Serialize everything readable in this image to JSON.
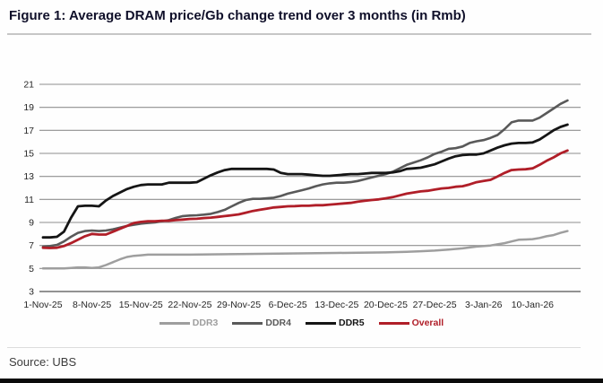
{
  "page": {
    "title": "Figure 1: Average DRAM price/Gb change trend over 3 months (in Rmb)",
    "source": "Source: UBS"
  },
  "chart_data": {
    "type": "line",
    "title": "Average DRAM price/Gb change trend over 3 months (in Rmb)",
    "xlabel": "",
    "ylabel": "",
    "ylim": [
      3,
      21
    ],
    "yticks": [
      3,
      5,
      7,
      9,
      11,
      13,
      15,
      17,
      19,
      21
    ],
    "x_unit": "days since 1-Nov-25",
    "xlim": [
      0,
      77
    ],
    "xticks": [
      0,
      7,
      14,
      21,
      28,
      35,
      42,
      49,
      56,
      63,
      70
    ],
    "xtick_labels": [
      "1-Nov-25",
      "8-Nov-25",
      "15-Nov-25",
      "22-Nov-25",
      "29-Nov-25",
      "6-Dec-25",
      "13-Dec-25",
      "20-Dec-25",
      "27-Dec-25",
      "3-Jan-26",
      "10-Jan-26"
    ],
    "grid": true,
    "gridline_color": "#8f8f8f",
    "axis_text_color": "#262626",
    "legend_position": "bottom",
    "series": [
      {
        "name": "DDR3",
        "color": "#9e9e9e",
        "width": 2.5,
        "points": [
          [
            0,
            5.0
          ],
          [
            3,
            5.0
          ],
          [
            4,
            5.05
          ],
          [
            5,
            5.1
          ],
          [
            6,
            5.1
          ],
          [
            7,
            5.05
          ],
          [
            8,
            5.1
          ],
          [
            9,
            5.3
          ],
          [
            10,
            5.55
          ],
          [
            11,
            5.8
          ],
          [
            12,
            6.0
          ],
          [
            13,
            6.1
          ],
          [
            14,
            6.15
          ],
          [
            15,
            6.2
          ],
          [
            21,
            6.2
          ],
          [
            28,
            6.25
          ],
          [
            35,
            6.3
          ],
          [
            42,
            6.35
          ],
          [
            49,
            6.4
          ],
          [
            52,
            6.45
          ],
          [
            54,
            6.5
          ],
          [
            56,
            6.55
          ],
          [
            58,
            6.65
          ],
          [
            60,
            6.75
          ],
          [
            62,
            6.9
          ],
          [
            64,
            7.0
          ],
          [
            65,
            7.1
          ],
          [
            66,
            7.2
          ],
          [
            67,
            7.35
          ],
          [
            68,
            7.5
          ],
          [
            69,
            7.52
          ],
          [
            70,
            7.55
          ],
          [
            71,
            7.65
          ],
          [
            72,
            7.8
          ],
          [
            73,
            7.9
          ],
          [
            74,
            8.1
          ],
          [
            75,
            8.25
          ]
        ]
      },
      {
        "name": "DDR4",
        "color": "#595959",
        "width": 2.6,
        "points": [
          [
            0,
            6.9
          ],
          [
            1,
            6.95
          ],
          [
            2,
            7.05
          ],
          [
            3,
            7.35
          ],
          [
            4,
            7.75
          ],
          [
            5,
            8.1
          ],
          [
            6,
            8.25
          ],
          [
            7,
            8.3
          ],
          [
            8,
            8.25
          ],
          [
            9,
            8.3
          ],
          [
            10,
            8.4
          ],
          [
            11,
            8.55
          ],
          [
            12,
            8.7
          ],
          [
            13,
            8.8
          ],
          [
            14,
            8.9
          ],
          [
            15,
            8.95
          ],
          [
            16,
            9.0
          ],
          [
            17,
            9.1
          ],
          [
            18,
            9.2
          ],
          [
            19,
            9.4
          ],
          [
            20,
            9.55
          ],
          [
            21,
            9.6
          ],
          [
            22,
            9.62
          ],
          [
            23,
            9.68
          ],
          [
            24,
            9.75
          ],
          [
            25,
            9.9
          ],
          [
            26,
            10.1
          ],
          [
            27,
            10.4
          ],
          [
            28,
            10.7
          ],
          [
            29,
            10.95
          ],
          [
            30,
            11.05
          ],
          [
            31,
            11.05
          ],
          [
            32,
            11.1
          ],
          [
            33,
            11.15
          ],
          [
            34,
            11.3
          ],
          [
            35,
            11.5
          ],
          [
            36,
            11.65
          ],
          [
            37,
            11.8
          ],
          [
            38,
            11.95
          ],
          [
            39,
            12.15
          ],
          [
            40,
            12.3
          ],
          [
            41,
            12.4
          ],
          [
            42,
            12.45
          ],
          [
            43,
            12.45
          ],
          [
            44,
            12.5
          ],
          [
            45,
            12.6
          ],
          [
            46,
            12.75
          ],
          [
            47,
            12.9
          ],
          [
            48,
            13.05
          ],
          [
            49,
            13.2
          ],
          [
            50,
            13.4
          ],
          [
            51,
            13.7
          ],
          [
            52,
            14.0
          ],
          [
            53,
            14.2
          ],
          [
            54,
            14.4
          ],
          [
            55,
            14.65
          ],
          [
            56,
            14.95
          ],
          [
            57,
            15.15
          ],
          [
            58,
            15.4
          ],
          [
            59,
            15.45
          ],
          [
            60,
            15.6
          ],
          [
            61,
            15.9
          ],
          [
            62,
            16.05
          ],
          [
            63,
            16.15
          ],
          [
            64,
            16.35
          ],
          [
            65,
            16.6
          ],
          [
            66,
            17.1
          ],
          [
            67,
            17.7
          ],
          [
            68,
            17.85
          ],
          [
            69,
            17.85
          ],
          [
            70,
            17.85
          ],
          [
            71,
            18.1
          ],
          [
            72,
            18.5
          ],
          [
            73,
            18.9
          ],
          [
            74,
            19.3
          ],
          [
            75,
            19.6
          ]
        ]
      },
      {
        "name": "DDR5",
        "color": "#151515",
        "width": 2.8,
        "points": [
          [
            0,
            7.7
          ],
          [
            1,
            7.7
          ],
          [
            2,
            7.75
          ],
          [
            3,
            8.2
          ],
          [
            4,
            9.4
          ],
          [
            5,
            10.4
          ],
          [
            6,
            10.45
          ],
          [
            7,
            10.45
          ],
          [
            8,
            10.4
          ],
          [
            9,
            10.9
          ],
          [
            10,
            11.3
          ],
          [
            11,
            11.6
          ],
          [
            12,
            11.9
          ],
          [
            13,
            12.1
          ],
          [
            14,
            12.25
          ],
          [
            15,
            12.3
          ],
          [
            17,
            12.3
          ],
          [
            18,
            12.45
          ],
          [
            20,
            12.45
          ],
          [
            21,
            12.45
          ],
          [
            22,
            12.5
          ],
          [
            23,
            12.8
          ],
          [
            24,
            13.1
          ],
          [
            25,
            13.35
          ],
          [
            26,
            13.55
          ],
          [
            27,
            13.65
          ],
          [
            29,
            13.65
          ],
          [
            31,
            13.65
          ],
          [
            32,
            13.65
          ],
          [
            33,
            13.6
          ],
          [
            34,
            13.3
          ],
          [
            35,
            13.2
          ],
          [
            36,
            13.2
          ],
          [
            37,
            13.2
          ],
          [
            38,
            13.15
          ],
          [
            39,
            13.1
          ],
          [
            40,
            13.05
          ],
          [
            41,
            13.05
          ],
          [
            42,
            13.1
          ],
          [
            43,
            13.15
          ],
          [
            44,
            13.2
          ],
          [
            45,
            13.2
          ],
          [
            46,
            13.25
          ],
          [
            47,
            13.3
          ],
          [
            49,
            13.3
          ],
          [
            50,
            13.35
          ],
          [
            51,
            13.45
          ],
          [
            52,
            13.65
          ],
          [
            53,
            13.7
          ],
          [
            54,
            13.75
          ],
          [
            55,
            13.9
          ],
          [
            56,
            14.05
          ],
          [
            57,
            14.3
          ],
          [
            58,
            14.55
          ],
          [
            59,
            14.75
          ],
          [
            60,
            14.85
          ],
          [
            61,
            14.9
          ],
          [
            62,
            14.9
          ],
          [
            63,
            15.0
          ],
          [
            64,
            15.25
          ],
          [
            65,
            15.5
          ],
          [
            66,
            15.7
          ],
          [
            67,
            15.85
          ],
          [
            68,
            15.9
          ],
          [
            69,
            15.9
          ],
          [
            70,
            15.95
          ],
          [
            71,
            16.2
          ],
          [
            72,
            16.6
          ],
          [
            73,
            17.0
          ],
          [
            74,
            17.3
          ],
          [
            75,
            17.5
          ]
        ]
      },
      {
        "name": "Overall",
        "color": "#b01e28",
        "width": 2.8,
        "points": [
          [
            0,
            6.8
          ],
          [
            1,
            6.78
          ],
          [
            2,
            6.8
          ],
          [
            3,
            6.95
          ],
          [
            4,
            7.2
          ],
          [
            5,
            7.5
          ],
          [
            6,
            7.8
          ],
          [
            7,
            8.0
          ],
          [
            8,
            7.95
          ],
          [
            9,
            7.95
          ],
          [
            10,
            8.2
          ],
          [
            11,
            8.45
          ],
          [
            12,
            8.7
          ],
          [
            13,
            8.95
          ],
          [
            14,
            9.05
          ],
          [
            15,
            9.1
          ],
          [
            16,
            9.1
          ],
          [
            17,
            9.15
          ],
          [
            18,
            9.15
          ],
          [
            19,
            9.2
          ],
          [
            20,
            9.25
          ],
          [
            21,
            9.3
          ],
          [
            22,
            9.32
          ],
          [
            23,
            9.38
          ],
          [
            24,
            9.42
          ],
          [
            25,
            9.48
          ],
          [
            26,
            9.55
          ],
          [
            27,
            9.62
          ],
          [
            28,
            9.7
          ],
          [
            29,
            9.85
          ],
          [
            30,
            10.0
          ],
          [
            31,
            10.1
          ],
          [
            32,
            10.2
          ],
          [
            33,
            10.3
          ],
          [
            34,
            10.35
          ],
          [
            35,
            10.4
          ],
          [
            36,
            10.42
          ],
          [
            37,
            10.45
          ],
          [
            38,
            10.45
          ],
          [
            39,
            10.5
          ],
          [
            40,
            10.5
          ],
          [
            41,
            10.55
          ],
          [
            42,
            10.6
          ],
          [
            43,
            10.65
          ],
          [
            44,
            10.7
          ],
          [
            45,
            10.8
          ],
          [
            46,
            10.88
          ],
          [
            47,
            10.95
          ],
          [
            48,
            11.0
          ],
          [
            49,
            11.1
          ],
          [
            50,
            11.2
          ],
          [
            51,
            11.35
          ],
          [
            52,
            11.5
          ],
          [
            53,
            11.6
          ],
          [
            54,
            11.7
          ],
          [
            55,
            11.75
          ],
          [
            56,
            11.85
          ],
          [
            57,
            11.95
          ],
          [
            58,
            12.0
          ],
          [
            59,
            12.1
          ],
          [
            60,
            12.15
          ],
          [
            61,
            12.3
          ],
          [
            62,
            12.5
          ],
          [
            63,
            12.6
          ],
          [
            64,
            12.7
          ],
          [
            65,
            13.0
          ],
          [
            66,
            13.3
          ],
          [
            67,
            13.55
          ],
          [
            68,
            13.6
          ],
          [
            69,
            13.62
          ],
          [
            70,
            13.7
          ],
          [
            71,
            14.0
          ],
          [
            72,
            14.35
          ],
          [
            73,
            14.65
          ],
          [
            74,
            15.0
          ],
          [
            75,
            15.25
          ]
        ]
      }
    ]
  }
}
